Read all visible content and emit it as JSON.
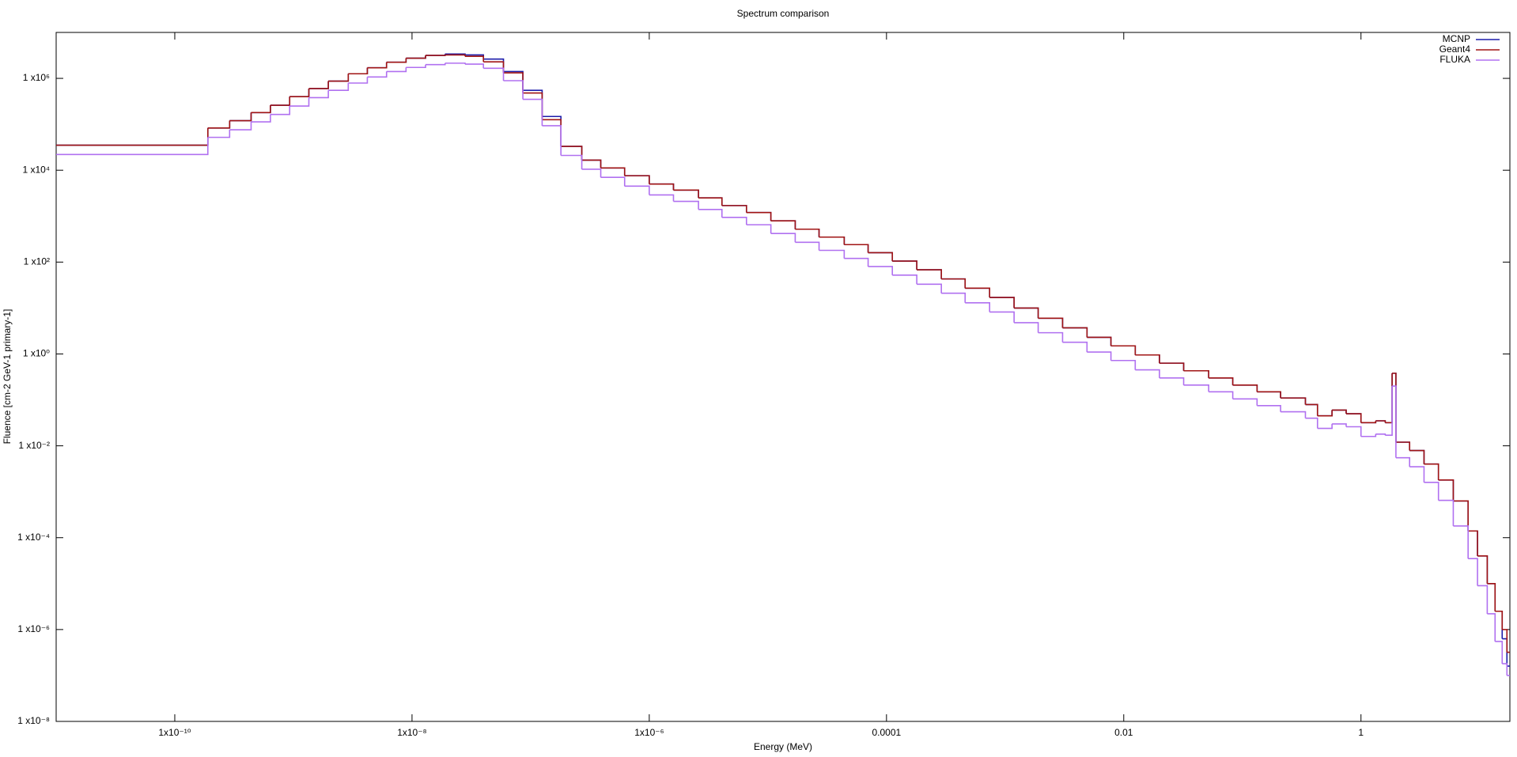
{
  "chart_data": {
    "type": "step",
    "title": "Spectrum comparison",
    "x_label": "Energy (MeV)",
    "y_label": "Fluence [cm-2 GeV-1 primary-1]",
    "xlog": true,
    "ylog": true,
    "grid": false,
    "legend": "top right",
    "xlim": [
      1e-11,
      18
    ],
    "ylim": [
      1e-08,
      10000000.0
    ],
    "xticks": [
      {
        "value": 1e-10,
        "label": "1x10⁻¹⁰"
      },
      {
        "value": 1e-08,
        "label": "1x10⁻⁸"
      },
      {
        "value": 1e-06,
        "label": "1x10⁻⁶"
      },
      0.0001,
      0.01,
      1
    ],
    "yticks": [
      {
        "value": 1e-08,
        "label": "1 x10⁻⁸"
      },
      {
        "value": 1e-06,
        "label": "1 x10⁻⁶"
      },
      {
        "value": 0.0001,
        "label": "1 x10⁻⁴"
      },
      {
        "value": 0.01,
        "label": "1 x10⁻²"
      },
      {
        "value": 1,
        "label": "1 x10⁰"
      },
      {
        "value": 100,
        "label": "1 x10²"
      },
      {
        "value": 10000,
        "label": "1 x10⁴"
      },
      {
        "value": 1000000,
        "label": "1 x10⁶"
      }
    ],
    "x": [
      1e-11,
      1.9e-10,
      2.9e-10,
      4.4e-10,
      6.4e-10,
      9.3e-10,
      1.35e-09,
      1.97e-09,
      2.9e-09,
      4.2e-09,
      6.1e-09,
      8.9e-09,
      1.3e-08,
      1.9e-08,
      2.8e-08,
      4e-08,
      5.9e-08,
      8.6e-08,
      1.25e-07,
      1.8e-07,
      2.7e-07,
      3.9e-07,
      6.2e-07,
      1e-06,
      1.6e-06,
      2.6e-06,
      4.1e-06,
      6.6e-06,
      1.06e-05,
      1.7e-05,
      2.7e-05,
      4.4e-05,
      7e-05,
      0.000112,
      0.00018,
      0.00029,
      0.00046,
      0.00074,
      0.00119,
      0.0019,
      0.00305,
      0.0049,
      0.0078,
      0.0125,
      0.02,
      0.032,
      0.052,
      0.083,
      0.133,
      0.21,
      0.34,
      0.43,
      0.57,
      0.75,
      1.0,
      1.33,
      1.6,
      1.83,
      1.97,
      2.57,
      3.4,
      4.5,
      6.0,
      8.0,
      9.6,
      11.6,
      13.5,
      15.5,
      17.0
    ],
    "series": [
      {
        "name": "MCNP",
        "color": "#1c1caa",
        "values": [
          35000,
          83000,
          120000,
          180000,
          260000,
          400000,
          600000,
          870000,
          1260000,
          1700000,
          2240000,
          2750000,
          3160000,
          3390000,
          3240000,
          2630000,
          1410000,
          550000,
          148000,
          33000,
          16600,
          11200,
          7600,
          5000,
          3700,
          2500,
          1700,
          1200,
          790,
          520,
          350,
          240,
          160,
          105,
          68,
          43,
          27,
          17,
          10,
          6.0,
          3.7,
          2.3,
          1.5,
          0.95,
          0.63,
          0.43,
          0.3,
          0.21,
          0.15,
          0.11,
          0.079,
          0.045,
          0.06,
          0.05,
          0.032,
          0.035,
          0.032,
          0.38,
          0.012,
          0.0079,
          0.004,
          0.0018,
          0.00063,
          0.00014,
          4e-05,
          1e-05,
          2.5e-06,
          6.3e-07,
          1.6e-07
        ]
      },
      {
        "name": "Geant4",
        "color": "#a01414",
        "values": [
          35000,
          83000,
          120000,
          180000,
          260000,
          400000,
          600000,
          870000,
          1260000,
          1700000,
          2240000,
          2750000,
          3160000,
          3240000,
          3020000,
          2290000,
          1320000,
          480000,
          126000,
          33000,
          16600,
          11200,
          7600,
          5000,
          3700,
          2500,
          1700,
          1200,
          790,
          520,
          350,
          240,
          160,
          105,
          68,
          43,
          27,
          17,
          10,
          6.0,
          3.7,
          2.3,
          1.5,
          0.95,
          0.63,
          0.43,
          0.3,
          0.21,
          0.15,
          0.11,
          0.079,
          0.045,
          0.06,
          0.05,
          0.032,
          0.035,
          0.032,
          0.38,
          0.012,
          0.0079,
          0.004,
          0.0018,
          0.00063,
          0.00014,
          4e-05,
          1e-05,
          2.5e-06,
          1e-06,
          3.2e-07
        ]
      },
      {
        "name": "FLUKA",
        "color": "#b070f0",
        "values": [
          22000,
          52000,
          76000,
          113000,
          164000,
          250000,
          380000,
          550000,
          790000,
          1070000,
          1410000,
          1730000,
          1990000,
          2140000,
          2040000,
          1660000,
          890000,
          350000,
          93000,
          21000,
          10500,
          7000,
          4500,
          2900,
          2100,
          1400,
          940,
          650,
          420,
          270,
          180,
          120,
          80,
          52,
          33,
          21,
          13,
          8.2,
          4.8,
          2.9,
          1.8,
          1.1,
          0.72,
          0.45,
          0.3,
          0.21,
          0.15,
          0.105,
          0.075,
          0.055,
          0.04,
          0.024,
          0.03,
          0.026,
          0.016,
          0.018,
          0.017,
          0.2,
          0.0055,
          0.0035,
          0.0016,
          0.00065,
          0.00018,
          3.5e-05,
          9e-06,
          2.2e-06,
          5.5e-07,
          1.8e-07,
          1e-07
        ]
      }
    ]
  }
}
